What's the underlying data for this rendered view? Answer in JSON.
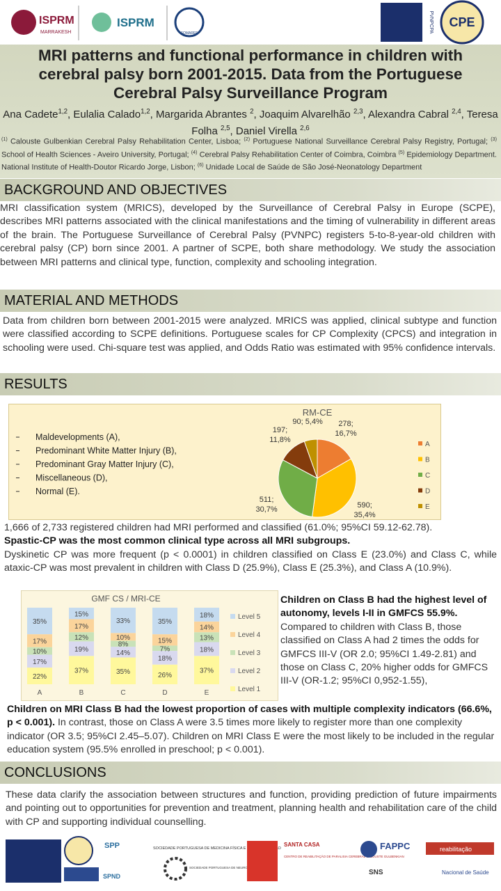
{
  "header": {
    "logos_top": [
      "ISPRM",
      "MARRAKESH",
      "ISPRM",
      "SOMAREF",
      "PVNPCPA",
      "CPE"
    ],
    "title": "MRI patterns and functional performance in children with cerebral palsy born 2001-2015. Data from the Portuguese Cerebral Palsy Surveillance Program",
    "authors": [
      "Ana Cadete",
      "1,2",
      ", Eulalia Calado",
      "1,2",
      ", Margarida Abrantes ",
      "2",
      ", Joaquim Alvarelhão ",
      "2,3",
      ", Alexandra Cabral ",
      "2,4",
      ", Teresa Folha ",
      "2,5",
      ", Daniel Virella ",
      "2,6"
    ],
    "affiliations": [
      "(1)",
      " Calouste Gulbenkian Cerebral Palsy Rehabilitation Center,  Lisboa; ",
      "(2)",
      " Portuguese National Surveillance Cerebral Palsy Registry, Portugal; ",
      "(3)",
      " School of Health Sciences - Aveiro University, Portugal; ",
      "(4)",
      " Cerebral Palsy Rehabilitation Center of Coimbra, Coimbra ",
      "(5)",
      " Epidemiology Department. National Institute of Health-Doutor Ricardo Jorge, Lisbon; ",
      "(6)",
      " Unidade Local de Saúde de São José-Neonatology Department"
    ]
  },
  "background": {
    "heading": "BACKGROUND AND OBJECTIVES",
    "text": "MRI classification system (MRICS), developed by the Surveillance of Cerebral Palsy in Europe (SCPE), describes MRI patterns associated with the clinical manifestations and the timing of vulnerability in different areas of the brain. The Portuguese Surveillance of Cerebral Palsy (PVNPC) registers 5-to-8-year-old children with cerebral palsy (CP) born since 2001. A partner of SCPE, both share methodology. We study the association between MRI patterns and clinical type, function, complexity and schooling integration."
  },
  "methods": {
    "heading": "MATERIAL AND  METHODS",
    "text": "Data from children born between 2001-2015 were analyzed. MRICS was applied, clinical subtype and function were classified according to SCPE definitions. Portuguese scales for CP Complexity (CPCS) and integration in schooling were used. Chi-square test was applied, and Odds Ratio was estimated with 95% confidence intervals."
  },
  "results": {
    "heading": "RESULTS",
    "pie_legend_items": [
      "Maldevelopments (A),",
      "Predominant White Matter Injury (B),",
      "Predominant Gray Matter Injury (C),",
      "Miscellaneous (D),",
      "Normal (E)."
    ],
    "p1": "1,666 of 2,733 registered children had MRI performed and classified (61.0%;  95%CI 59.12-62.78).",
    "p2_bold": "Spastic-CP was the most common clinical type across all MRI subgroups.",
    "p3": "Dyskinetic CP was more frequent (p < 0.0001) in children classified on Class E (23.0%) and Class C, while ataxic-CP was most prevalent in children with Class D (25.9%), Class E (25.3%), and Class A (10.9%).",
    "side_bold": "Children on Class B had the highest level of autonomy, levels I-II in GMFCS 55.9%.",
    "side_text": " Compared to children with Class B, those classified on Class A had 2 times the odds for GMFCS III-V (OR 2.0; 95%CI 1.49-2.81) and those on Class C, 20% higher odds for GMFCS III-V (OR-1.2; 95%CI 0,952-1.55),",
    "bottom_bold": "Children on MRI Class B had the lowest proportion of cases with multiple complexity indicators (66.6%, p < 0.001).",
    "bottom_text": " In contrast, those on Class A were 3.5 times more likely to register more than one complexity indicator (OR 3.5; 95%CI 2.45–5.07). Children on MRI Class E were the most likely to be included in the regular education system (95.5% enrolled in preschool; p < 0.001)."
  },
  "conclusions": {
    "heading": "CONCLUSIONS",
    "text": "These data clarify the association between structures and function, providing prediction of future impairments and pointing out to opportunities for prevention and treatment, planning health and rehabilitation care of the child with CP and supporting individual counselling."
  },
  "footer": {
    "logos": [
      "SPP",
      "SOCIEDADE PORTUGUESA DE MEDICINA FÍSICA E DE REABILITAÇÃO",
      "SANTA CASA",
      "CENTRO DE REABILITAÇÃO DE PARALISIA CEREBRAL CALOUSTE GULBENKIAN",
      "FAPPC",
      "reabilitação",
      "SPND",
      "SOCIEDADE PORTUGUESA DE NEUROPEDIATRIA",
      "SNS",
      "Nacional de Saúde"
    ]
  },
  "chart_data": [
    {
      "type": "pie",
      "title": "RM-CE",
      "categories": [
        "A",
        "B",
        "C",
        "D",
        "E"
      ],
      "values": [
        278,
        590,
        511,
        197,
        90
      ],
      "value_labels": [
        "278; 16,7%",
        "590; 35,4%",
        "511; 30,7%",
        "197; 11,8%",
        "90; 5,4%"
      ],
      "colors": [
        "#ed7d31",
        "#ffc000",
        "#70ad47",
        "#843c0c",
        "#bf9000"
      ],
      "legend": "right"
    },
    {
      "type": "bar",
      "stacked": true,
      "title": "GMF CS / MRI-CE",
      "categories": [
        "A",
        "B",
        "C",
        "D",
        "E"
      ],
      "legend": "right",
      "series": [
        {
          "name": "Level 1",
          "color": "#fff89c",
          "values": [
            22,
            37,
            35,
            26,
            37
          ],
          "value_labels": [
            "22%",
            "37%",
            "35%",
            "26%",
            "37%"
          ]
        },
        {
          "name": "Level 2",
          "color": "#d9d9ef",
          "values": [
            17,
            19,
            14,
            18,
            18
          ],
          "value_labels": [
            "17%",
            "19%",
            "14%",
            "18%",
            "18%"
          ]
        },
        {
          "name": "Level 3",
          "color": "#c9e2b8",
          "values": [
            10,
            12,
            8,
            7,
            13
          ],
          "value_labels": [
            "10%",
            "12%",
            "8%",
            "7%",
            "13%"
          ]
        },
        {
          "name": "Level 4",
          "color": "#fbd49b",
          "values": [
            17,
            17,
            10,
            15,
            14
          ],
          "value_labels": [
            "17%",
            "17%",
            "10%",
            "15%",
            "14%"
          ]
        },
        {
          "name": "Level 5",
          "color": "#c5dbef",
          "values": [
            35,
            15,
            33,
            35,
            18
          ],
          "value_labels": [
            "35%",
            "15%",
            "33%",
            "35%",
            "18%"
          ]
        }
      ]
    }
  ]
}
